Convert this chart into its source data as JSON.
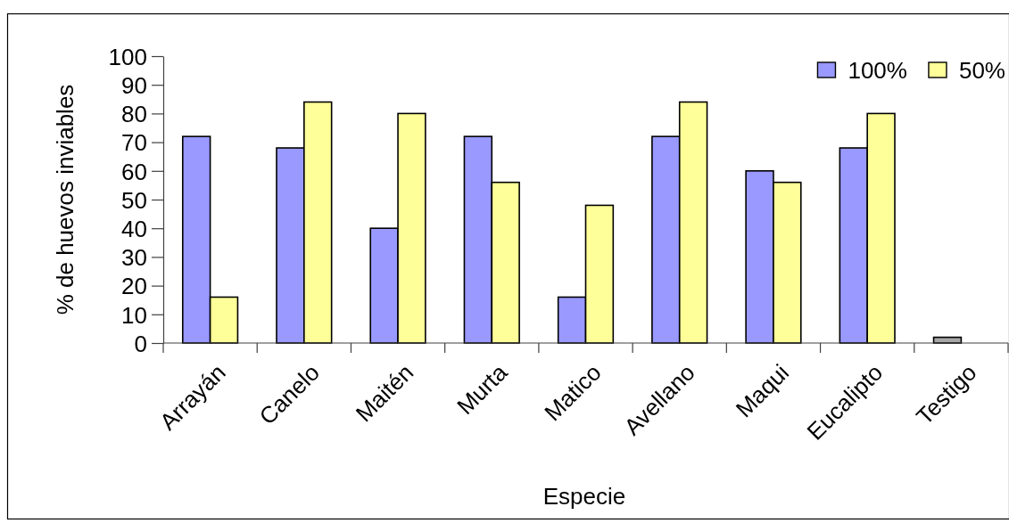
{
  "chart_data": {
    "type": "bar",
    "xlabel": "Especie",
    "ylabel": "% de huevos inviables",
    "categories": [
      "Arrayán",
      "Canelo",
      "Maitén",
      "Murta",
      "Matico",
      "Avellano",
      "Maqui",
      "Eucalipto",
      "Testigo"
    ],
    "series": [
      {
        "name": "100%",
        "color": "#9999ff",
        "colors": [
          "#9999ff",
          "#9999ff",
          "#9999ff",
          "#9999ff",
          "#9999ff",
          "#9999ff",
          "#9999ff",
          "#9999ff",
          "#a6a6a6"
        ],
        "values": [
          72,
          68,
          40,
          72,
          16,
          72,
          60,
          68,
          2
        ]
      },
      {
        "name": "50%",
        "color": "#ffff99",
        "values": [
          16,
          84,
          80,
          56,
          48,
          84,
          56,
          80,
          null
        ]
      }
    ],
    "ylim": [
      0,
      100
    ],
    "yticks": [
      0,
      10,
      20,
      30,
      40,
      50,
      60,
      70,
      80,
      90,
      100
    ],
    "grid": false,
    "legend": "top right"
  }
}
